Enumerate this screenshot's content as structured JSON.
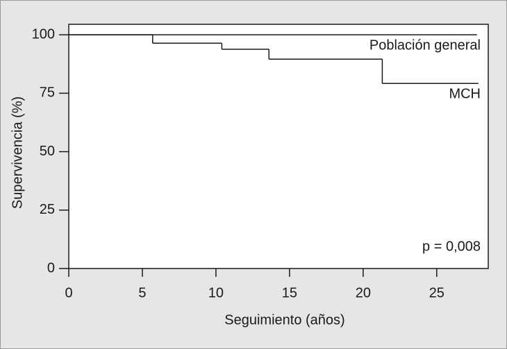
{
  "chart_data": {
    "type": "step",
    "x_label": "Seguimiento (años)",
    "y_label": "Supervivencia (%)",
    "annotation": "p = 0,008",
    "xlim": [
      0,
      28.5
    ],
    "xticks": [
      0,
      5,
      10,
      15,
      20,
      25
    ],
    "ylim": [
      0,
      104.5
    ],
    "yticks": [
      0,
      25,
      50,
      75,
      100
    ],
    "series": [
      {
        "name": "Población general",
        "color": "#1a1a1a",
        "x": [
          0,
          27.7
        ],
        "values": [
          100,
          100
        ]
      },
      {
        "name": "MCH",
        "color": "#1a1a1a",
        "x": [
          0,
          5.7,
          10.4,
          13.6,
          21.3,
          27.8
        ],
        "values": [
          100,
          96.4,
          93.8,
          89.6,
          79.2,
          79.2
        ]
      }
    ]
  }
}
